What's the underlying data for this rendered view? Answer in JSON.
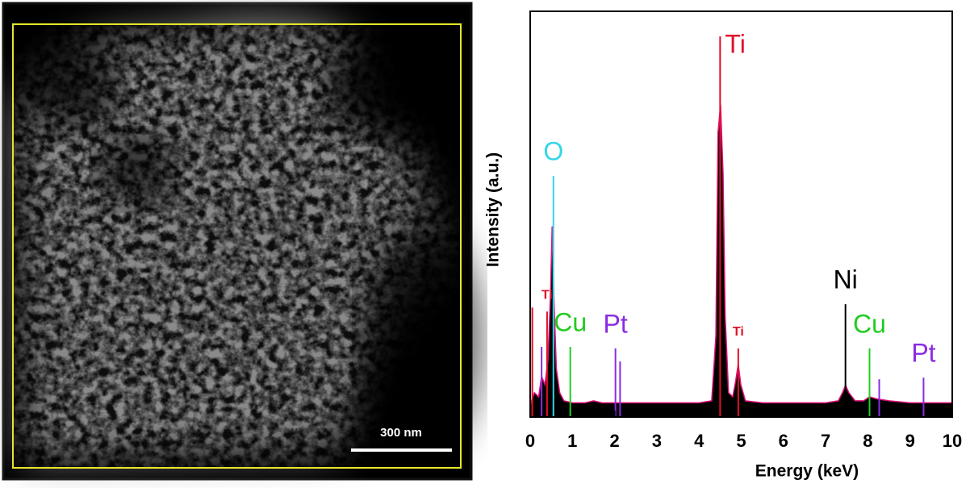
{
  "image": {
    "scale_bar": "300 nm"
  },
  "chart_data": {
    "type": "line",
    "xlabel": "Energy (keV)",
    "ylabel": "Intensity (a.u.)",
    "xlim": [
      0,
      10
    ],
    "xticks": [
      0,
      1,
      2,
      3,
      4,
      5,
      6,
      7,
      8,
      9,
      10
    ],
    "ylim": [
      0,
      100
    ],
    "x": [
      0,
      0.1,
      0.2,
      0.27,
      0.35,
      0.42,
      0.48,
      0.52,
      0.56,
      0.62,
      0.7,
      0.8,
      1.0,
      1.3,
      1.5,
      1.7,
      2.0,
      2.5,
      3.0,
      3.5,
      4.0,
      4.3,
      4.4,
      4.45,
      4.51,
      4.57,
      4.62,
      4.7,
      4.8,
      4.87,
      4.93,
      4.99,
      5.1,
      5.5,
      6.0,
      6.5,
      7.0,
      7.3,
      7.4,
      7.47,
      7.55,
      7.7,
      7.9,
      8.04,
      8.2,
      8.5,
      9.0,
      9.5,
      10
    ],
    "series": [
      {
        "color": "#e0107a",
        "fill": "#000000",
        "values": [
          3,
          6,
          5,
          10,
          8,
          14,
          30,
          47,
          30,
          12,
          6,
          4,
          3.5,
          3.5,
          4,
          3.5,
          3.5,
          3.5,
          3.5,
          3.5,
          3.5,
          4,
          20,
          70,
          77,
          60,
          25,
          6,
          5,
          9,
          13,
          8,
          4,
          3.5,
          3.5,
          3.5,
          3.5,
          4,
          6,
          7.8,
          6,
          4,
          4,
          5,
          4.5,
          4,
          3.5,
          3.5,
          3.5
        ]
      }
    ],
    "markers": [
      {
        "x": 0.05,
        "y": 27,
        "label": null,
        "color": "#e0102a"
      },
      {
        "x": 0.27,
        "y": 17.3,
        "label": null,
        "color": "#8a2be2"
      },
      {
        "x": 0.4,
        "y": 26,
        "label": "Ti",
        "color": "#e0102a"
      },
      {
        "x": 0.55,
        "y": 59.4,
        "label": "O",
        "color": "#33d6e6"
      },
      {
        "x": 0.95,
        "y": 17.3,
        "label": "Cu",
        "color": "#22cc22"
      },
      {
        "x": 2.02,
        "y": 16.9,
        "label": "Pt",
        "color": "#8a2be2"
      },
      {
        "x": 2.13,
        "y": 13.7,
        "label": null,
        "color": "#8a2be2"
      },
      {
        "x": 4.5,
        "y": 93.8,
        "label": "Ti",
        "color": "#e0102a"
      },
      {
        "x": 4.93,
        "y": 16.9,
        "label": "Ti",
        "color": "#e0102a"
      },
      {
        "x": 7.47,
        "y": 27.8,
        "label": "Ni",
        "color": "#000000"
      },
      {
        "x": 8.04,
        "y": 16.9,
        "label": "Cu",
        "color": "#22cc22"
      },
      {
        "x": 8.27,
        "y": 9.3,
        "label": null,
        "color": "#8a2be2"
      },
      {
        "x": 9.32,
        "y": 9.7,
        "label": "Pt",
        "color": "#8a2be2"
      }
    ]
  }
}
